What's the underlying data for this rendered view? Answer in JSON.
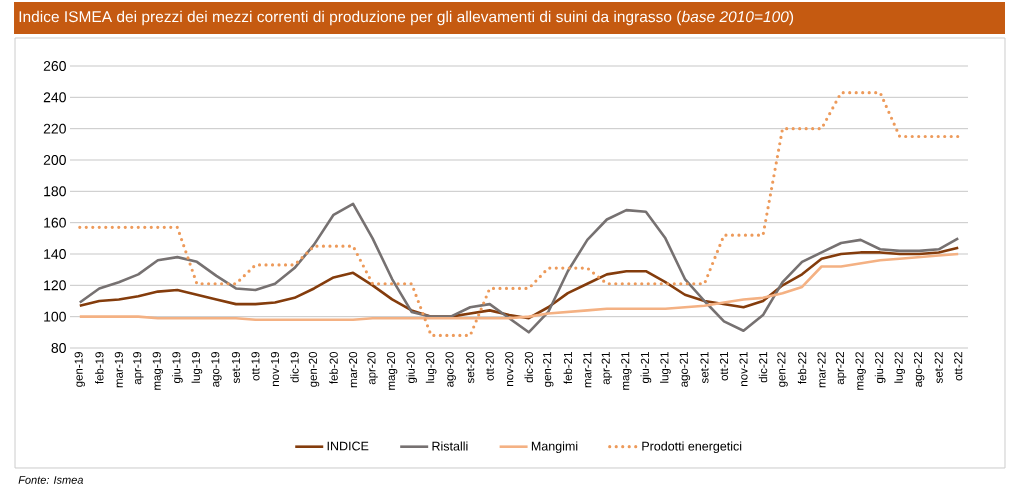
{
  "chart_data": {
    "type": "line",
    "title": "Indice ISMEA dei prezzi dei mezzi correnti di produzione per gli allevamenti di suini da ingrasso (*base 2010=100*)",
    "categories": [
      "gen-19",
      "feb-19",
      "mar-19",
      "apr-19",
      "mag-19",
      "giu-19",
      "lug-19",
      "ago-19",
      "set-19",
      "ott-19",
      "nov-19",
      "dic-19",
      "gen-20",
      "feb-20",
      "mar-20",
      "apr-20",
      "mag-20",
      "giu-20",
      "lug-20",
      "ago-20",
      "set-20",
      "ott-20",
      "nov-20",
      "dic-20",
      "gen-21",
      "feb-21",
      "mar-21",
      "apr-21",
      "mag-21",
      "giu-21",
      "lug-21",
      "ago-21",
      "set-21",
      "ott-21",
      "nov-21",
      "dic-21",
      "gen-22",
      "feb-22",
      "mar-22",
      "apr-22",
      "mag-22",
      "giu-22",
      "lug-22",
      "ago-22",
      "set-22",
      "ott-22"
    ],
    "series": [
      {
        "name": "INDICE",
        "color": "#843c0c",
        "line_style": "solid",
        "values": [
          107,
          110,
          111,
          113,
          116,
          117,
          114,
          111,
          108,
          108,
          109,
          112,
          118,
          125,
          128,
          120,
          111,
          104,
          100,
          100,
          102,
          104,
          101,
          99,
          106,
          115,
          121,
          127,
          129,
          129,
          122,
          114,
          110,
          108,
          106,
          110,
          120,
          127,
          137,
          140,
          141,
          141,
          140,
          140,
          141,
          144
        ]
      },
      {
        "name": "Ristalli",
        "color": "#767171",
        "line_style": "solid",
        "values": [
          109,
          118,
          122,
          127,
          136,
          138,
          135,
          126,
          118,
          117,
          121,
          131,
          146,
          165,
          172,
          150,
          124,
          103,
          100,
          100,
          106,
          108,
          99,
          90,
          103,
          129,
          149,
          162,
          168,
          167,
          150,
          124,
          110,
          97,
          91,
          101,
          122,
          135,
          141,
          147,
          149,
          143,
          142,
          142,
          143,
          150
        ]
      },
      {
        "name": "Mangimi",
        "color": "#f4b183",
        "line_style": "solid",
        "values": [
          100,
          100,
          100,
          100,
          99,
          99,
          99,
          99,
          99,
          98,
          98,
          98,
          98,
          98,
          98,
          99,
          99,
          99,
          99,
          99,
          99,
          99,
          99,
          100,
          102,
          103,
          104,
          105,
          105,
          105,
          105,
          106,
          107,
          109,
          111,
          112,
          115,
          119,
          132,
          132,
          134,
          136,
          137,
          138,
          139,
          140
        ]
      },
      {
        "name": "Prodotti energetici",
        "color": "#ed9a5a",
        "line_style": "dotted",
        "values": [
          157,
          157,
          157,
          157,
          157,
          157,
          121,
          121,
          121,
          133,
          133,
          133,
          145,
          145,
          145,
          121,
          121,
          121,
          88,
          88,
          88,
          118,
          118,
          118,
          131,
          131,
          131,
          121,
          121,
          121,
          121,
          121,
          121,
          152,
          152,
          152,
          220,
          220,
          220,
          243,
          243,
          243,
          215,
          215,
          215,
          215
        ]
      }
    ],
    "ylim": [
      80,
      260
    ],
    "yticks": [
      80,
      100,
      120,
      140,
      160,
      180,
      200,
      220,
      240,
      260
    ],
    "grid": "y",
    "legend": "bottom",
    "annotations": [
      "Fonte: Ismea"
    ]
  }
}
